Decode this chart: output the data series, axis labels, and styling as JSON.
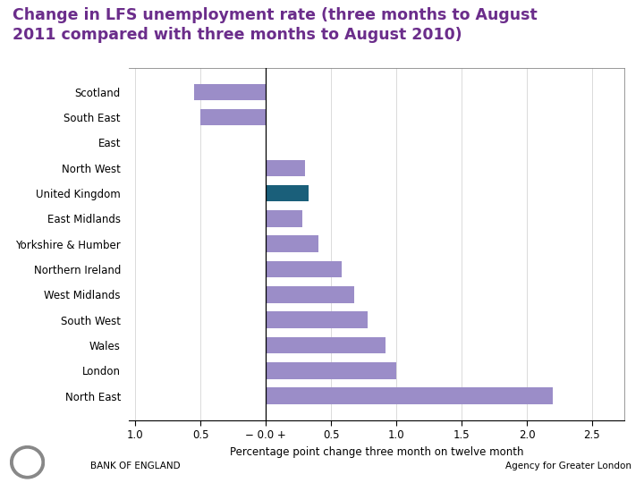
{
  "title_line1": "Change in LFS unemployment rate (three months to August",
  "title_line2": "2011 compared with three months to August 2010)",
  "title_color": "#6B2D8B",
  "xlabel": "Percentage point change three month on twelve month",
  "categories": [
    "Scotland",
    "South East",
    "East",
    "North West",
    "United Kingdom",
    "East Midlands",
    "Yorkshire & Humber",
    "Northern Ireland",
    "West Midlands",
    "South West",
    "Wales",
    "London",
    "North East"
  ],
  "values": [
    -0.55,
    -0.5,
    0.0,
    0.3,
    0.33,
    0.28,
    0.4,
    0.58,
    0.68,
    0.78,
    0.92,
    1.0,
    2.2
  ],
  "bar_colors": [
    "#9b8dc8",
    "#9b8dc8",
    "#9b8dc8",
    "#9b8dc8",
    "#1a5f7a",
    "#9b8dc8",
    "#9b8dc8",
    "#9b8dc8",
    "#9b8dc8",
    "#9b8dc8",
    "#9b8dc8",
    "#9b8dc8",
    "#9b8dc8"
  ],
  "xlim": [
    -1.05,
    2.75
  ],
  "xticks": [
    -1.0,
    -0.5,
    0.0,
    0.5,
    1.0,
    1.5,
    2.0,
    2.5
  ],
  "xticklabels": [
    "1.0",
    "0.5",
    "− 0.0 +",
    "0.5",
    "1.0",
    "1.5",
    "2.0",
    "2.5"
  ],
  "background_color": "#ffffff",
  "footer_left": "BANK OF ENGLAND",
  "footer_right": "Agency for Greater London"
}
